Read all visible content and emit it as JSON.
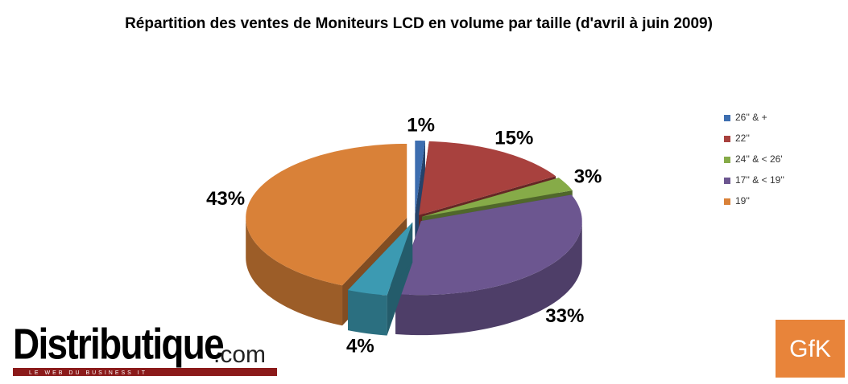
{
  "chart_data": {
    "type": "pie3d",
    "title": "Répartition des ventes de Moniteurs LCD en volume par taille (d'avril à juin 2009)",
    "categories": [
      "26'' & +",
      "22''",
      "24'' & < 26'",
      "17'' & < 19''",
      null,
      "19''"
    ],
    "values": [
      1,
      15,
      3,
      33,
      4,
      43
    ],
    "value_labels": [
      "1%",
      "15%",
      "3%",
      "33%",
      "4%",
      "43%"
    ],
    "colors": [
      "#3d6eb0",
      "#a8413e",
      "#86ab48",
      "#6c5690",
      "#3c9ab2",
      "#d98138"
    ],
    "legend": "right"
  },
  "branding": {
    "left": "Distributique",
    "left_suffix": ".com",
    "tagline": "LE WEB DU BUSINESS IT",
    "right": "GfK"
  }
}
